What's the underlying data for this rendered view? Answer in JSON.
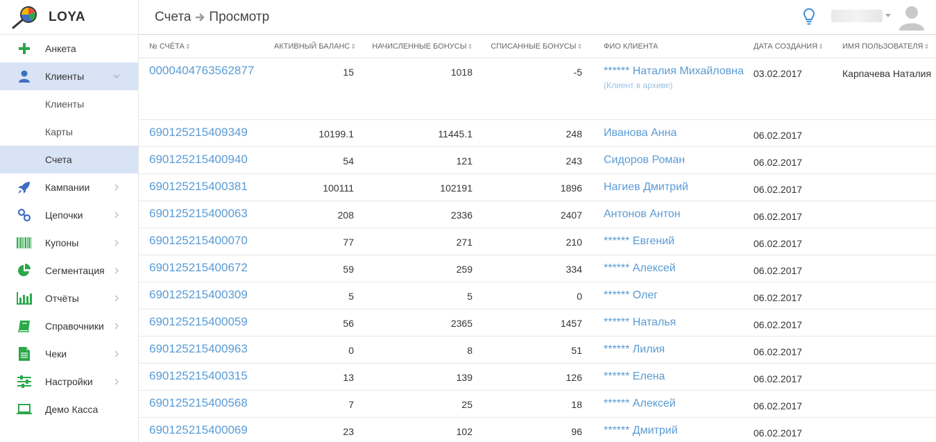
{
  "app": {
    "name": "LOYA"
  },
  "header": {
    "breadcrumb": [
      "Счета",
      "Просмотр"
    ]
  },
  "sidebar": {
    "items": [
      {
        "label": "Анкета",
        "icon": "plus-icon"
      },
      {
        "label": "Клиенты",
        "icon": "user-icon",
        "expanded": true,
        "children": [
          {
            "label": "Клиенты"
          },
          {
            "label": "Карты"
          },
          {
            "label": "Счета",
            "active": true
          }
        ]
      },
      {
        "label": "Кампании",
        "icon": "rocket-icon"
      },
      {
        "label": "Цепочки",
        "icon": "link-icon"
      },
      {
        "label": "Купоны",
        "icon": "barcode-icon"
      },
      {
        "label": "Сегментация",
        "icon": "pie-chart-icon"
      },
      {
        "label": "Отчёты",
        "icon": "bar-chart-icon"
      },
      {
        "label": "Справочники",
        "icon": "book-icon"
      },
      {
        "label": "Чеки",
        "icon": "receipt-icon"
      },
      {
        "label": "Настройки",
        "icon": "sliders-icon"
      },
      {
        "label": "Демо Касса",
        "icon": "laptop-icon"
      }
    ]
  },
  "table": {
    "columns": [
      "№ СЧЁТА",
      "АКТИВНЫЙ БАЛАНС",
      "НАЧИСЛЕННЫЕ БОНУСЫ",
      "СПИСАННЫЕ БОНУСЫ",
      "ФИО КЛИЕНТА",
      "ДАТА СОЗДАНИЯ",
      "ИМЯ ПОЛЬЗОВАТЕЛЯ"
    ],
    "rows": [
      {
        "account": "0000404763562877",
        "balance": "15",
        "accrued": "1018",
        "spent": "-5",
        "client": "****** Наталия Михайловна",
        "note": "(Клиент в архиве)",
        "date": "03.02.2017",
        "user": "Карпачева Наталия"
      },
      {
        "account": "690125215409349",
        "balance": "10199.1",
        "accrued": "11445.1",
        "spent": "248",
        "client": "Иванова Анна",
        "note": "",
        "date": "06.02.2017",
        "user": ""
      },
      {
        "account": "690125215400940",
        "balance": "54",
        "accrued": "121",
        "spent": "243",
        "client": "Сидоров Роман",
        "note": "",
        "date": "06.02.2017",
        "user": ""
      },
      {
        "account": "690125215400381",
        "balance": "100111",
        "accrued": "102191",
        "spent": "1896",
        "client": "Нагиев Дмитрий",
        "note": "",
        "date": "06.02.2017",
        "user": ""
      },
      {
        "account": "690125215400063",
        "balance": "208",
        "accrued": "2336",
        "spent": "2407",
        "client": "Антонов Антон",
        "note": "",
        "date": "06.02.2017",
        "user": ""
      },
      {
        "account": "690125215400070",
        "balance": "77",
        "accrued": "271",
        "spent": "210",
        "client": "****** Евгений",
        "note": "",
        "date": "06.02.2017",
        "user": ""
      },
      {
        "account": "690125215400672",
        "balance": "59",
        "accrued": "259",
        "spent": "334",
        "client": "****** Алексей",
        "note": "",
        "date": "06.02.2017",
        "user": ""
      },
      {
        "account": "690125215400309",
        "balance": "5",
        "accrued": "5",
        "spent": "0",
        "client": "****** Олег",
        "note": "",
        "date": "06.02.2017",
        "user": ""
      },
      {
        "account": "690125215400059",
        "balance": "56",
        "accrued": "2365",
        "spent": "1457",
        "client": "****** Наталья",
        "note": "",
        "date": "06.02.2017",
        "user": ""
      },
      {
        "account": "690125215400963",
        "balance": "0",
        "accrued": "8",
        "spent": "51",
        "client": "****** Лилия",
        "note": "",
        "date": "06.02.2017",
        "user": ""
      },
      {
        "account": "690125215400315",
        "balance": "13",
        "accrued": "139",
        "spent": "126",
        "client": "****** Елена",
        "note": "",
        "date": "06.02.2017",
        "user": ""
      },
      {
        "account": "690125215400568",
        "balance": "7",
        "accrued": "25",
        "spent": "18",
        "client": "****** Алексей",
        "note": "",
        "date": "06.02.2017",
        "user": ""
      },
      {
        "account": "690125215400069",
        "balance": "23",
        "accrued": "102",
        "spent": "96",
        "client": "****** Дмитрий",
        "note": "",
        "date": "06.02.2017",
        "user": ""
      }
    ]
  },
  "colors": {
    "accent": "#5a9bd5",
    "active_bg": "#d9e3f6",
    "icon_green": "#2aa84a",
    "icon_blue": "#3e6fc2"
  }
}
